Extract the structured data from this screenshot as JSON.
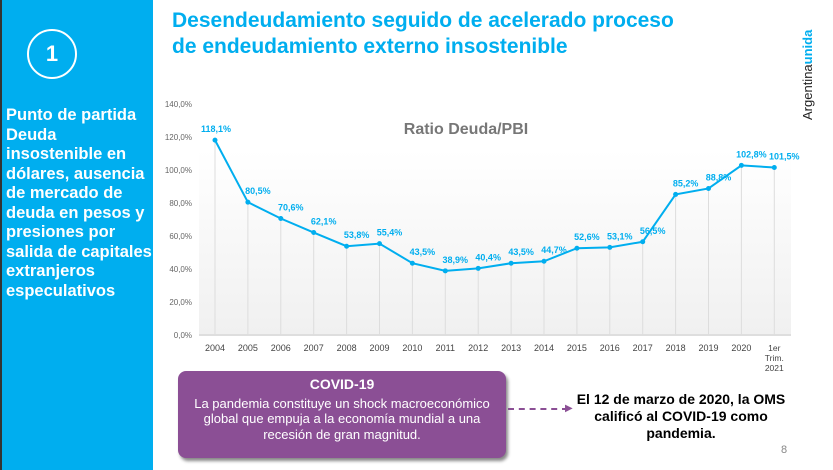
{
  "sidebar": {
    "number": "1",
    "text": "Punto de partida Deuda insostenible en dólares, ausencia de mercado de deuda en pesos y presiones por salida de capitales extranjeros especulativos"
  },
  "header": {
    "title_line1": "Desendeudamiento seguido de acelerado proceso",
    "title_line2": "de endeudamiento externo insostenible"
  },
  "brand": {
    "part1": "Argentina",
    "part2": "unida"
  },
  "chart_data": {
    "type": "line",
    "title": "Ratio Deuda/PBI",
    "categories": [
      "2004",
      "2005",
      "2006",
      "2007",
      "2008",
      "2009",
      "2010",
      "2011",
      "2012",
      "2013",
      "2014",
      "2015",
      "2016",
      "2017",
      "2018",
      "2019",
      "2020",
      "1er Trim. 2021"
    ],
    "values": [
      118.1,
      80.5,
      70.6,
      62.1,
      53.8,
      55.4,
      43.5,
      38.9,
      40.4,
      43.5,
      44.7,
      52.6,
      53.1,
      56.5,
      85.2,
      88.8,
      102.8,
      101.5
    ],
    "data_labels": [
      "118,1%",
      "80,5%",
      "70,6%",
      "62,1%",
      "53,8%",
      "55,4%",
      "43,5%",
      "38,9%",
      "40,4%",
      "43,5%",
      "44,7%",
      "52,6%",
      "53,1%",
      "56,5%",
      "85,2%",
      "88,8%",
      "102,8%",
      "101,5%"
    ],
    "yticks": [
      "0,0%",
      "20,0%",
      "40,0%",
      "60,0%",
      "80,0%",
      "100,0%",
      "120,0%",
      "140,0%"
    ],
    "ylim": [
      0,
      140
    ],
    "color": "#00aeef"
  },
  "covid_box": {
    "heading": "COVID-19",
    "body": "La pandemia constituye un shock macroeconómico global que empuja a la economía mundial a una recesión de gran magnitud."
  },
  "note": "El 12 de marzo de 2020, la OMS calificó al COVID-19 como pandemia.",
  "page_number": "8"
}
